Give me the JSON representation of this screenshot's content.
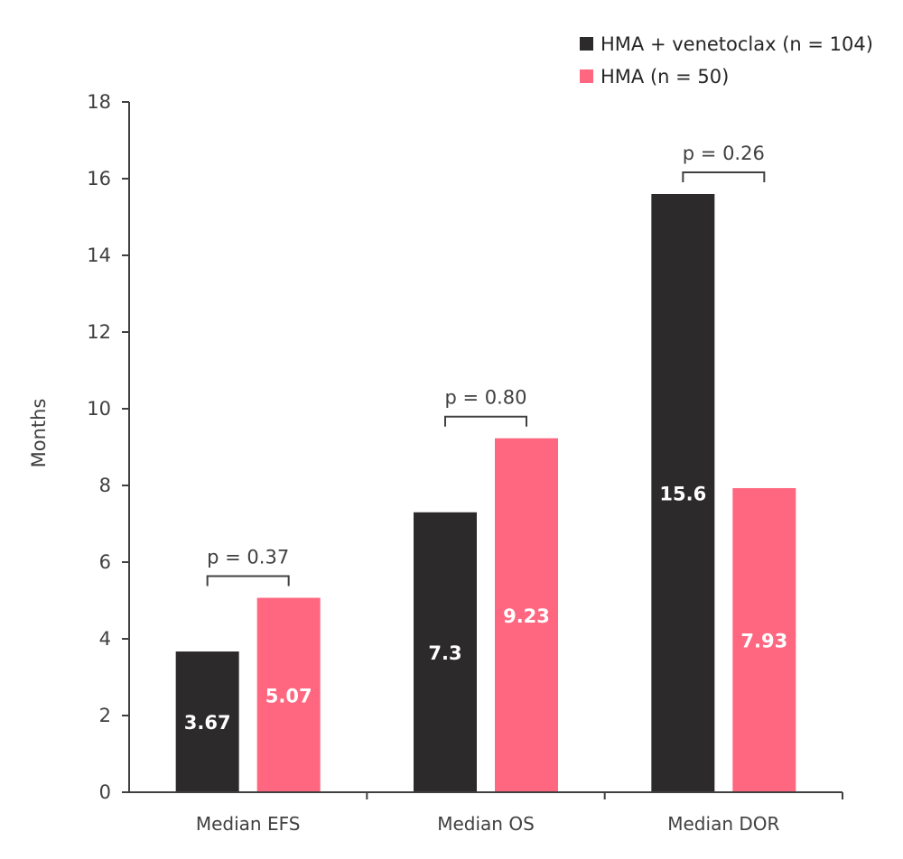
{
  "chart_data": {
    "type": "bar",
    "title": "",
    "xlabel": "",
    "ylabel": "Months",
    "ylim": [
      0,
      18
    ],
    "yticks": [
      0,
      2,
      4,
      6,
      8,
      10,
      12,
      14,
      16,
      18
    ],
    "grid": false,
    "legend_position": "top-right",
    "categories": [
      "Median EFS",
      "Median OS",
      "Median DOR"
    ],
    "series": [
      {
        "name": "HMA + venetoclax (n = 104)",
        "color": "#2d2a2b",
        "values": [
          3.67,
          7.3,
          15.6
        ],
        "labels": [
          "3.67",
          "7.3",
          "15.6"
        ]
      },
      {
        "name": "HMA (n = 50)",
        "color": "#ff6680",
        "values": [
          5.07,
          9.23,
          7.93
        ],
        "labels": [
          "5.07",
          "9.23",
          "7.93"
        ]
      }
    ],
    "annotations": [
      {
        "category": "Median EFS",
        "text": "p = 0.37"
      },
      {
        "category": "Median OS",
        "text": "p = 0.80"
      },
      {
        "category": "Median DOR",
        "text": "p = 0.26"
      }
    ]
  }
}
